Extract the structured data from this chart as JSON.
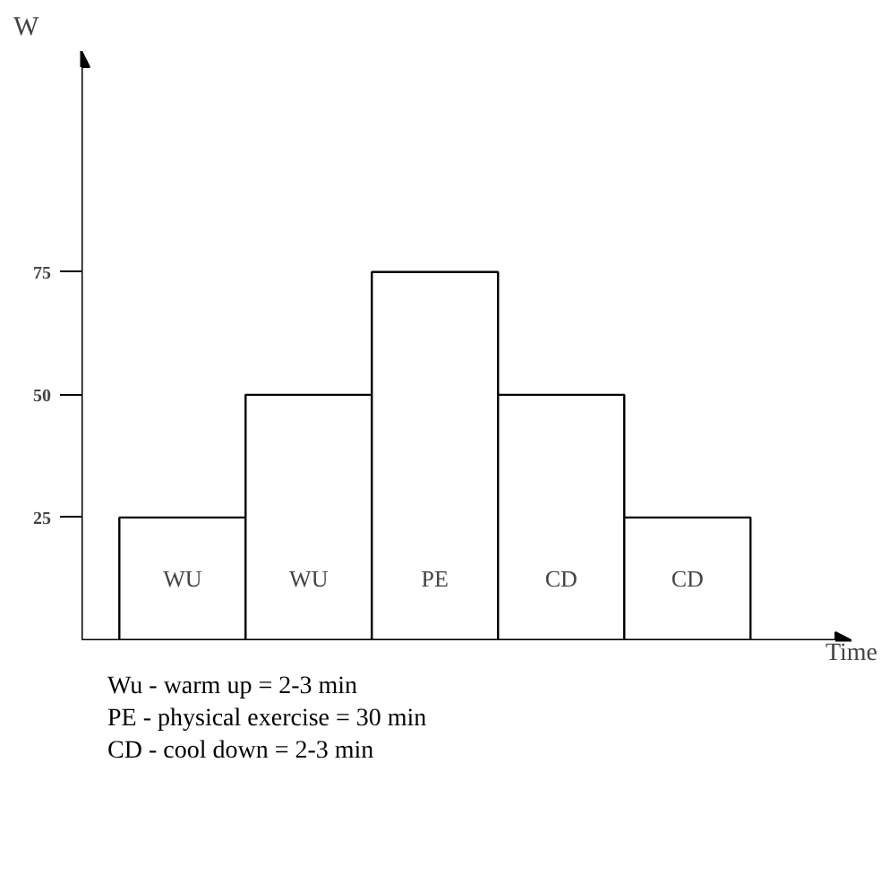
{
  "chart_data": {
    "type": "bar",
    "categories": [
      "WU",
      "WU",
      "PE",
      "CD",
      "CD"
    ],
    "values": [
      25,
      50,
      75,
      50,
      25
    ],
    "color": "#ffffff",
    "xlabel": "Time",
    "ylabel": "W",
    "ylim": [
      0,
      120
    ],
    "yticks": [
      25,
      50,
      75
    ],
    "grid": false,
    "annotations": [
      "Wu - warm up = 2-3  min",
      "PE - physical exercise = 30 min",
      "CD - cool down = 2-3 min"
    ]
  }
}
